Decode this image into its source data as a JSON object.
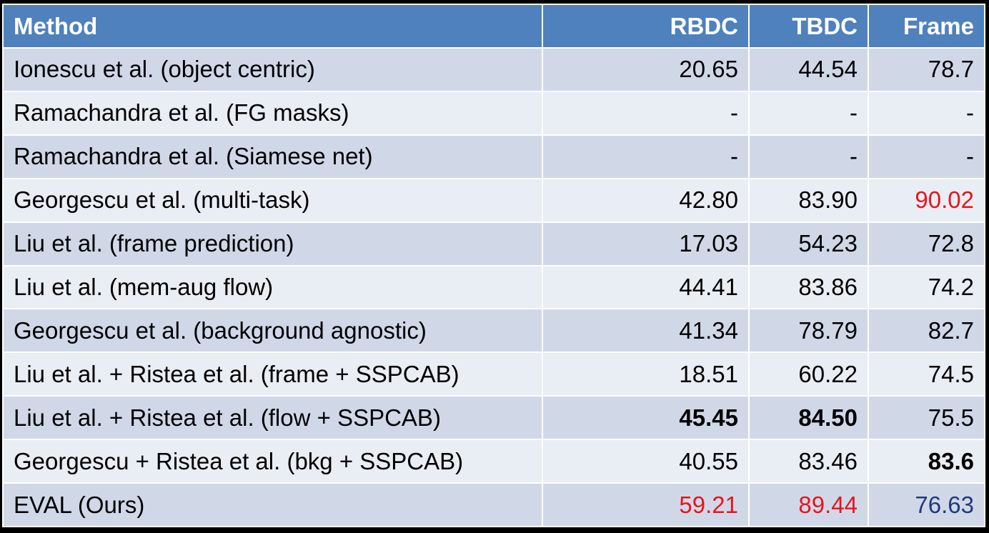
{
  "table": {
    "columns": [
      "Method",
      "RBDC",
      "TBDC",
      "Frame"
    ],
    "rows": [
      {
        "method": "Ionescu et al. (object centric)",
        "rbdc": "20.65",
        "tbdc": "44.54",
        "frame": "78.7"
      },
      {
        "method": "Ramachandra et al. (FG masks)",
        "rbdc": "-",
        "tbdc": "-",
        "frame": "-"
      },
      {
        "method": "Ramachandra et al. (Siamese net)",
        "rbdc": "-",
        "tbdc": "-",
        "frame": "-"
      },
      {
        "method": "Georgescu et al. (multi-task)",
        "rbdc": "42.80",
        "tbdc": "83.90",
        "frame": "90.02",
        "frame_color": "#e8141b"
      },
      {
        "method": "Liu et al. (frame prediction)",
        "rbdc": "17.03",
        "tbdc": "54.23",
        "frame": "72.8"
      },
      {
        "method": "Liu et al. (mem-aug flow)",
        "rbdc": "44.41",
        "tbdc": "83.86",
        "frame": "74.2"
      },
      {
        "method": "Georgescu et al. (background agnostic)",
        "rbdc": "41.34",
        "tbdc": "78.79",
        "frame": "82.7"
      },
      {
        "method": "Liu et al. + Ristea et al.  (frame + SSPCAB)",
        "rbdc": "18.51",
        "tbdc": "60.22",
        "frame": "74.5"
      },
      {
        "method": "Liu et al. + Ristea et al. (flow + SSPCAB)",
        "rbdc": "45.45",
        "rbdc_bold": true,
        "tbdc": "84.50",
        "tbdc_bold": true,
        "frame": "75.5"
      },
      {
        "method": "Georgescu + Ristea et al. (bkg + SSPCAB)",
        "rbdc": "40.55",
        "tbdc": "83.46",
        "frame": "83.6",
        "frame_bold": true
      },
      {
        "method": "EVAL (Ours)",
        "rbdc": "59.21",
        "rbdc_color": "#e8141b",
        "tbdc": "89.44",
        "tbdc_color": "#e8141b",
        "frame": "76.63",
        "frame_color": "#1f3a7a"
      }
    ]
  },
  "colors": {
    "header_bg": "#4f81bd",
    "row_odd_bg": "#d0d8e8",
    "row_even_bg": "#e9edf4",
    "best_red": "#e8141b",
    "ours_blue": "#1f3a7a"
  }
}
